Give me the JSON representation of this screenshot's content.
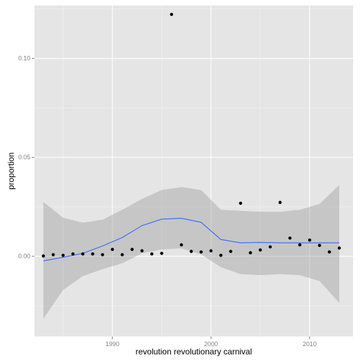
{
  "chart_data": {
    "type": "scatter",
    "title": "",
    "xlabel": "revolution revolutionary carnival",
    "ylabel": "proportion",
    "xlim": [
      1982.1,
      2014.4
    ],
    "ylim": [
      -0.0405,
      0.1267
    ],
    "x_ticks": [
      1990,
      2000,
      2010
    ],
    "x_tick_labels": [
      "1990",
      "2000",
      "2010"
    ],
    "y_ticks": [
      0.0,
      0.05,
      0.1
    ],
    "y_tick_labels": [
      "0.00",
      "0.05",
      "0.10"
    ],
    "grid": true,
    "legend": "none",
    "colors": {
      "panel_background": "#e5e5e5",
      "grid_major": "#ffffff",
      "grid_minor": "#f2f2f2",
      "points": "#000000",
      "smooth_line": "#3366ff",
      "confidence_band": "#999999"
    },
    "points": {
      "x": [
        1983,
        1984,
        1985,
        1986,
        1987,
        1988,
        1989,
        1990,
        1991,
        1992,
        1993,
        1994,
        1995,
        1996,
        1997,
        1998,
        1999,
        2000,
        2001,
        2002,
        2003,
        2004,
        2005,
        2006,
        2007,
        2008,
        2009,
        2010,
        2011,
        2012,
        2013
      ],
      "y": [
        0.0002,
        0.0008,
        0.0005,
        0.0012,
        0.0012,
        0.0012,
        0.0008,
        0.0035,
        0.0008,
        0.0035,
        0.0028,
        0.0012,
        0.0015,
        0.1222,
        0.0058,
        0.0025,
        0.0022,
        0.0028,
        0.0005,
        0.0025,
        0.0268,
        0.0018,
        0.0032,
        0.0048,
        0.0272,
        0.0092,
        0.0058,
        0.0082,
        0.0055,
        0.0022,
        0.0042
      ]
    },
    "smooth": {
      "x": [
        1983,
        1985,
        1987,
        1989,
        1991,
        1993,
        1995,
        1997,
        1999,
        2001,
        2003,
        2005,
        2007,
        2009,
        2011,
        2013
      ],
      "y": [
        -0.0023,
        -0.0005,
        0.0015,
        0.0052,
        0.0095,
        0.0155,
        0.0188,
        0.0192,
        0.0172,
        0.0085,
        0.0068,
        0.007,
        0.0068,
        0.0068,
        0.0068,
        0.0068
      ],
      "lower": [
        -0.0315,
        -0.017,
        -0.01,
        -0.0065,
        -0.0035,
        0.0015,
        0.0035,
        0.004,
        0.001,
        -0.0055,
        -0.009,
        -0.0095,
        -0.009,
        -0.0095,
        -0.0125,
        -0.0235
      ],
      "upper": [
        0.0275,
        0.0195,
        0.017,
        0.0185,
        0.0235,
        0.029,
        0.0335,
        0.035,
        0.0335,
        0.0235,
        0.023,
        0.0225,
        0.0225,
        0.0235,
        0.0265,
        0.036
      ]
    }
  }
}
